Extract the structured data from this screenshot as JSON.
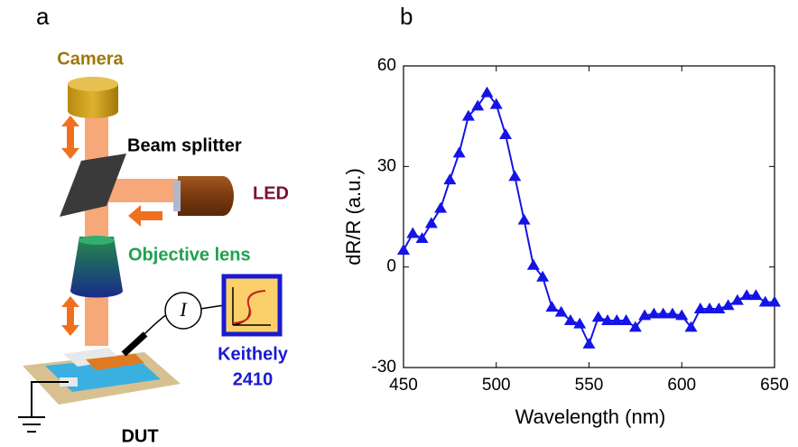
{
  "diagram": {
    "panel_label": "a",
    "camera": "Camera",
    "beam_splitter": "Beam splitter",
    "led": "LED",
    "objective": "Objective lens",
    "meter_name": "Keithely",
    "meter_model": "2410",
    "dut": "DUT",
    "current_symbol": "I"
  },
  "chart_data": {
    "type": "line",
    "panel_label": "b",
    "marker": "triangle",
    "color": "#1414e6",
    "xlabel": "Wavelength (nm)",
    "ylabel": "dR/R (a.u.)",
    "xlim": [
      450,
      650
    ],
    "ylim": [
      -30,
      60
    ],
    "xticks": [
      450,
      500,
      550,
      600,
      650
    ],
    "yticks": [
      -30,
      0,
      30,
      60
    ],
    "x": [
      450,
      455,
      460,
      465,
      470,
      475,
      480,
      485,
      490,
      495,
      500,
      505,
      510,
      515,
      520,
      525,
      530,
      535,
      540,
      545,
      550,
      555,
      560,
      565,
      570,
      575,
      580,
      585,
      590,
      595,
      600,
      605,
      610,
      615,
      620,
      625,
      630,
      635,
      640,
      645,
      650
    ],
    "values": [
      5,
      10,
      8.5,
      13,
      17.5,
      26,
      34,
      45,
      48,
      52,
      48.5,
      39.5,
      27,
      14,
      0.5,
      -3,
      -12,
      -13.5,
      -16,
      -17,
      -23,
      -15,
      -16,
      -16,
      -16,
      -18,
      -14.5,
      -14,
      -14,
      -14,
      -14.5,
      -18,
      -12.5,
      -12.5,
      -12.5,
      -11.5,
      -10,
      -8.5,
      -8.5,
      -10.5,
      -10.5
    ]
  }
}
